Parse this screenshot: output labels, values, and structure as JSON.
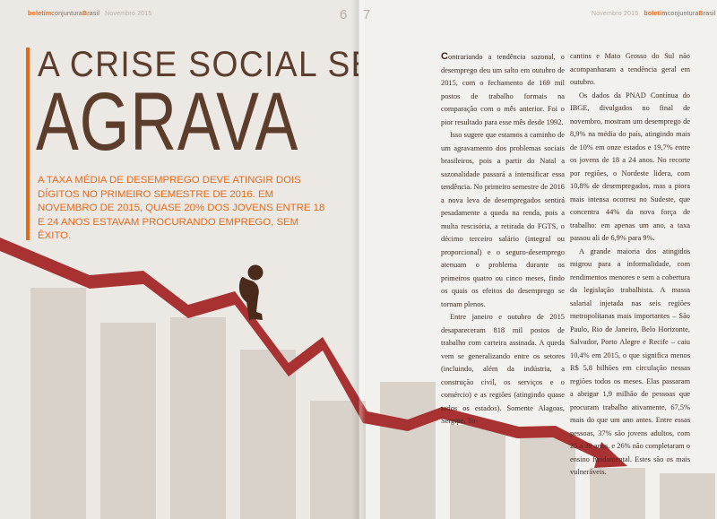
{
  "header": {
    "brand_pre": "boletim",
    "brand_mid": "conjuntura",
    "brand_b": "B",
    "brand_post": "rasil",
    "date": "Novembro 2015",
    "page_left": "6",
    "page_right": "7"
  },
  "article": {
    "title_line1": "A CRISE SOCIAL SE",
    "title_line2": "AGRAVA",
    "lede": "A taxa média de desemprego deve atingir dois dígitos no primeiro semestre de 2016. Em novembro de 2015, quase 20% dos jovens entre 18 e 24 anos estavam procurando emprego, sem êxito."
  },
  "illustration": {
    "bar_color": "#d9d2cb",
    "arrow_color": "#a83232",
    "figure_color": "#4a2a1a",
    "bars": [
      0.86,
      0.73,
      0.75,
      0.63,
      0.44,
      0.51,
      0.35,
      0.31,
      0.19,
      0.17
    ]
  },
  "body": {
    "col1": [
      {
        "dropcap": "C",
        "text": "ontrariando a tendência sazonal, o desemprego deu um salto em outubro de 2015, com o fechamento de 169 mil postos de trabalho formais na comparação com o mês anterior. Foi o pior resultado para esse mês desde 1992."
      },
      {
        "text": "Isso sugere que estamos a caminho de um agravamento dos problemas sociais brasileiros, pois a partir do Natal a sazonalidade passará a intensificar essa tendência. No primeiro semestre de 2016 a nova leva de desempregados sentirá pesadamente a queda na renda, pois a multa rescisória, a retirada do FGTS, o décimo terceiro salário (integral ou proporcional) e o seguro-desemprego atenuam o problema durante os primeiros quatro ou cinco meses, findo os quais os efeitos do desemprego se tornam plenos."
      },
      {
        "text": "Entre janeiro e outubro de 2015 desapareceram 818 mil postos de trabalho com carteira assinada. A queda vem se generalizando entre os setores (incluindo, além da indústria, a construção civil, os serviços e o comércio) e as regiões (atingindo quase todos os estados). Somente Alagoas, Sergipe, To-"
      }
    ],
    "col2": [
      {
        "text": "cantins e Mato Grosso do Sul não acompanharam a tendência geral em outubro."
      },
      {
        "text": "Os dados da PNAD Contínua do IBGE, divulgados no final de novembro, mostram um desemprego de 8,9% na média do país, atingindo mais de 10% em onze estados e 19,7% entre os jovens de 18 a 24 anos. No recorte por regiões, o Nordeste lidera, com 10,8% de desempregados, mas a piora mais intensa ocorreu no Sudeste, que concentra 44% da nova força de trabalho: em apenas um ano, a taxa passou ali de 6,9% para 9%."
      },
      {
        "text": "A grande maioria dos atingidos migrou para a informalidade, com rendimentos menores e sem a cobertura da legislação trabalhista. A massa salarial injetada nas seis regiões metropolitanas mais importantes – São Paulo, Rio de Janeiro, Belo Horizonte, Salvador, Porto Alegre e Recife – caiu 10,4% em 2015, o que significa menos R$ 5,8 bilhões em circulação nessas regiões todos os meses. Elas passaram a abrigar 1,9 milhão de pessoas que procuram trabalho ativamente, 67,5% mais do que um ano antes. Entre essas pessoas, 37% são jovens adultos, com 25 a 39 anos, e 26% não completaram o ensino fundamental. Estes são os mais vulneráveis."
      }
    ]
  }
}
